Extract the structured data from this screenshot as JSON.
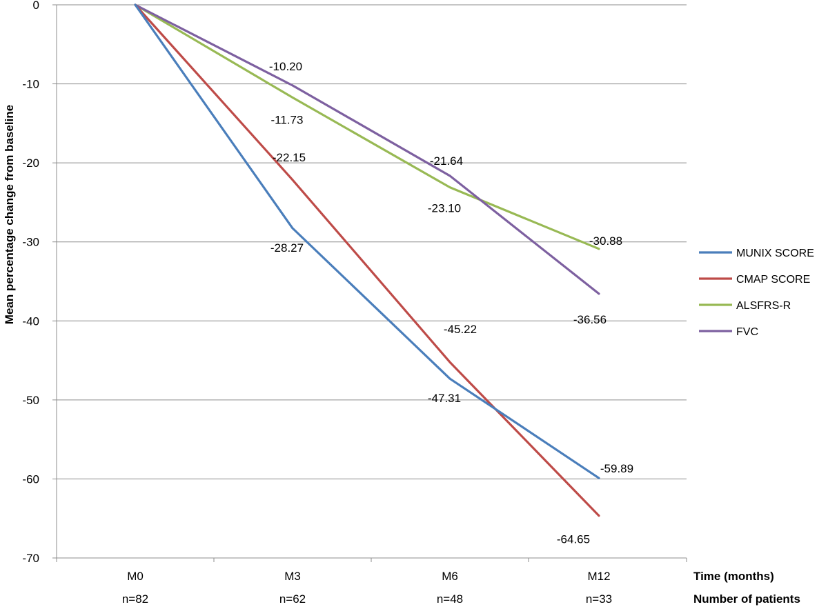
{
  "chart_data": {
    "type": "line",
    "title": "",
    "categories": [
      "M0",
      "M3",
      "M6",
      "M12"
    ],
    "patient_counts": [
      "n=82",
      "n=62",
      "n=48",
      "n=33"
    ],
    "xlabel": "Time (months)",
    "xlabel2": "Number of patients",
    "ylabel": "Mean percentage change from baseline",
    "ylim": [
      -70,
      0
    ],
    "yticks": [
      0,
      -10,
      -20,
      -30,
      -40,
      -50,
      -60,
      -70
    ],
    "grid": true,
    "legend_position": "right",
    "series": [
      {
        "name": "MUNIX SCORE",
        "color": "#4A7EBB",
        "values": [
          0,
          -28.27,
          -47.31,
          -59.89
        ],
        "labels": [
          "",
          "-28.27",
          "-47.31",
          "-59.89"
        ]
      },
      {
        "name": "CMAP SCORE",
        "color": "#BE4B48",
        "values": [
          0,
          -22.15,
          -45.22,
          -64.65
        ],
        "labels": [
          "",
          "-22.15",
          "-45.22",
          "-64.65"
        ]
      },
      {
        "name": "ALSFRS-R",
        "color": "#98B954",
        "values": [
          0,
          -11.73,
          -23.1,
          -30.88
        ],
        "labels": [
          "",
          "-11.73",
          "-23.10",
          "-30.88"
        ]
      },
      {
        "name": "FVC",
        "color": "#7D60A0",
        "values": [
          0,
          -10.2,
          -21.64,
          -36.56
        ],
        "labels": [
          "",
          "-10.20",
          "-21.64",
          "-36.56"
        ]
      }
    ]
  }
}
